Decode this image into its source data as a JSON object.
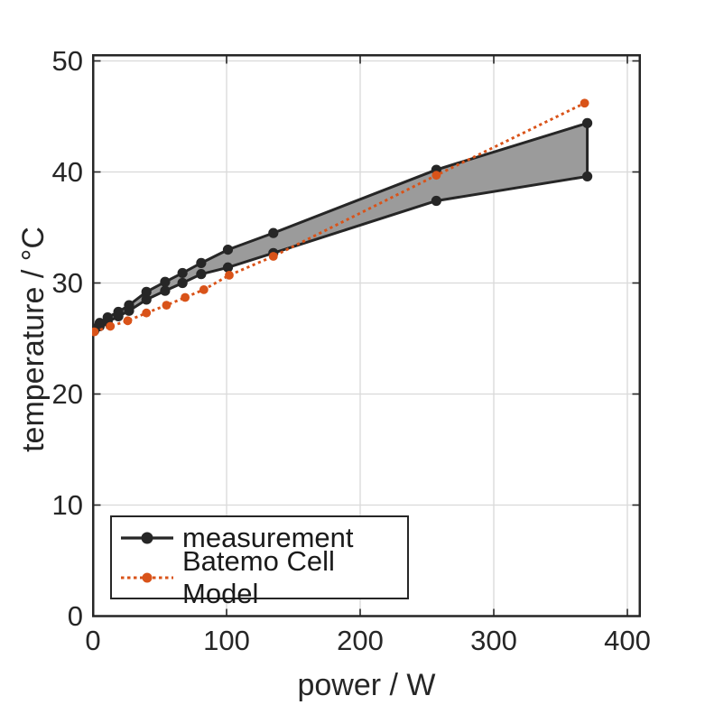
{
  "colors": {
    "dark": "#262626",
    "orange": "#D95319",
    "band_fill": "#9b9b9b",
    "grid": "#d9d9d9"
  },
  "axes": {
    "xlabel": "power / W",
    "ylabel": "temperature / °C",
    "x_tick_labels": [
      "0",
      "100",
      "200",
      "300",
      "400"
    ],
    "y_tick_labels": [
      "0",
      "10",
      "20",
      "30",
      "40",
      "50"
    ]
  },
  "legend": {
    "items": [
      {
        "label": "measurement"
      },
      {
        "label": "Batemo Cell Model"
      }
    ]
  },
  "chart_data": {
    "type": "line",
    "title": "",
    "xlabel": "power / W",
    "ylabel": "temperature / °C",
    "xlim": [
      0,
      409
    ],
    "ylim": [
      0,
      50.6
    ],
    "x_ticks": [
      0,
      100,
      200,
      300,
      400
    ],
    "y_ticks": [
      0,
      10,
      20,
      30,
      40,
      50
    ],
    "grid": true,
    "legend_position": "south-west",
    "band": {
      "name": "measurement",
      "fill_color": "#9b9b9b",
      "line_color": "#262626",
      "marker": "circle",
      "upper": {
        "x": [
          1,
          5,
          11,
          19,
          27,
          40,
          54,
          67,
          81,
          101,
          135,
          257,
          370
        ],
        "y": [
          25.9,
          26.4,
          26.9,
          27.4,
          28.0,
          29.2,
          30.1,
          30.9,
          31.8,
          33.0,
          34.5,
          40.2,
          44.4
        ]
      },
      "lower": {
        "x": [
          1,
          5,
          11,
          19,
          27,
          40,
          54,
          67,
          81,
          101,
          135,
          257,
          370
        ],
        "y": [
          25.7,
          26.1,
          26.5,
          27.0,
          27.5,
          28.5,
          29.3,
          30.0,
          30.8,
          31.4,
          32.7,
          37.4,
          39.6
        ]
      }
    },
    "series": [
      {
        "name": "Batemo Cell Model",
        "color": "#D95319",
        "line_style": "dotted",
        "marker": "circle",
        "x": [
          1,
          13,
          26,
          40,
          55,
          69,
          83,
          102,
          135,
          257,
          368
        ],
        "y": [
          25.6,
          26.1,
          26.6,
          27.3,
          28.0,
          28.7,
          29.4,
          30.7,
          32.4,
          39.7,
          46.2
        ]
      }
    ]
  }
}
